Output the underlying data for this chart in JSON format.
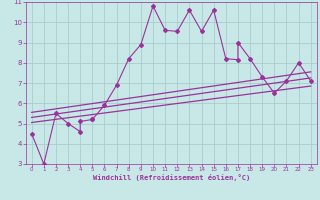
{
  "background_color": "#c8e8e8",
  "grid_color": "#aacccc",
  "line_color": "#993399",
  "xlim": [
    -0.5,
    23.5
  ],
  "ylim": [
    3,
    11
  ],
  "xticks": [
    0,
    1,
    2,
    3,
    4,
    5,
    6,
    7,
    8,
    9,
    10,
    11,
    12,
    13,
    14,
    15,
    16,
    17,
    18,
    19,
    20,
    21,
    22,
    23
  ],
  "yticks": [
    3,
    4,
    5,
    6,
    7,
    8,
    9,
    10,
    11
  ],
  "xlabel": "Windchill (Refroidissement éolien,°C)",
  "scatter_x": [
    0,
    1,
    2,
    3,
    4,
    4,
    5,
    5,
    6,
    7,
    8,
    9,
    10,
    11,
    12,
    13,
    14,
    15,
    16,
    17,
    17,
    18,
    19,
    20,
    21,
    22,
    23
  ],
  "scatter_y": [
    4.5,
    3.0,
    5.5,
    5.0,
    4.6,
    5.1,
    5.2,
    5.2,
    5.9,
    6.9,
    8.2,
    8.9,
    10.8,
    9.6,
    9.55,
    10.6,
    9.55,
    10.6,
    8.2,
    8.15,
    9.0,
    8.2,
    7.3,
    6.5,
    7.1,
    8.0,
    7.1
  ],
  "line1_x": [
    0,
    23
  ],
  "line1_y": [
    5.3,
    7.25
  ],
  "line2_x": [
    0,
    23
  ],
  "line2_y": [
    5.55,
    7.55
  ],
  "line3_x": [
    0,
    23
  ],
  "line3_y": [
    5.05,
    6.85
  ]
}
